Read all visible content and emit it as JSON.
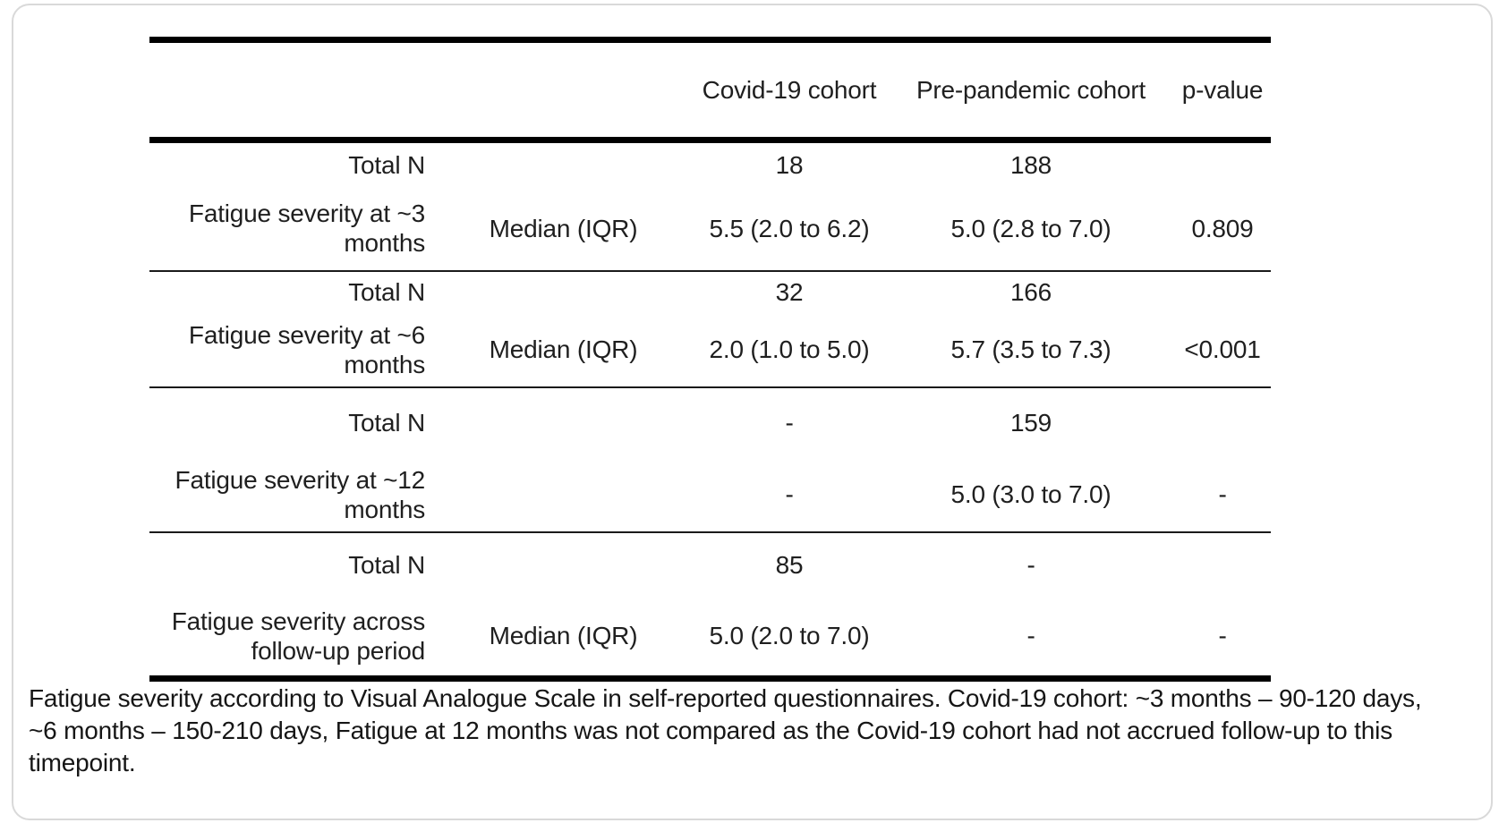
{
  "table": {
    "header": {
      "covid": "Covid-19 cohort",
      "pre_pandemic": "Pre-pandemic cohort",
      "p_value": "p-value"
    },
    "sections": [
      {
        "name": "Fatigue severity at ~3 months",
        "rows": [
          {
            "cells": [
              "Total N",
              "",
              "18",
              "188",
              ""
            ]
          },
          {
            "cells": [
              "Fatigue severity at ~3 months",
              "Median (IQR)",
              "5.5 (2.0 to 6.2)",
              "5.0 (2.8 to 7.0)",
              "0.809"
            ]
          }
        ]
      },
      {
        "name": "Fatigue severity at ~6 months",
        "rows": [
          {
            "cells": [
              "Total N",
              "",
              "32",
              "166",
              ""
            ]
          },
          {
            "cells": [
              "Fatigue severity at ~6 months",
              "Median (IQR)",
              "2.0 (1.0 to 5.0)",
              "5.7 (3.5 to 7.3)",
              "<0.001"
            ]
          }
        ]
      },
      {
        "name": "Fatigue severity at ~12 months",
        "rows": [
          {
            "cells": [
              "Total N",
              "",
              "-",
              "159",
              ""
            ]
          },
          {
            "cells": [
              "Fatigue severity at ~12 months",
              "",
              "-",
              "5.0 (3.0 to 7.0)",
              "-"
            ]
          }
        ]
      },
      {
        "name": "Fatigue severity across follow-up period",
        "rows": [
          {
            "cells": [
              "Total N",
              "",
              "85",
              "-",
              ""
            ]
          },
          {
            "cells": [
              "Fatigue severity across follow-up period",
              "Median (IQR)",
              "5.0 (2.0 to 7.0)",
              "-",
              "-"
            ]
          }
        ]
      }
    ]
  },
  "caption": "Fatigue severity according to Visual Analogue Scale in self-reported questionnaires. Covid-19 cohort: ~3 months – 90-120 days, ~6 months – 150-210 days, Fatigue at 12 months was not compared as the Covid-19 cohort had not accrued follow-up to this timepoint."
}
